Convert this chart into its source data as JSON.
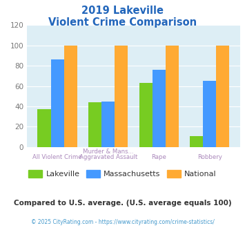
{
  "title_line1": "2019 Lakeville",
  "title_line2": "Violent Crime Comparison",
  "x_labels_top": [
    "",
    "Murder & Mans...",
    "",
    ""
  ],
  "x_labels_bottom": [
    "All Violent Crime",
    "Aggravated Assault",
    "Rape",
    "Robbery"
  ],
  "lakeville": [
    37,
    44,
    63,
    11
  ],
  "massachusetts": [
    86,
    45,
    76,
    65
  ],
  "national": [
    100,
    100,
    100,
    100
  ],
  "colors": {
    "lakeville": "#77cc22",
    "massachusetts": "#4499ff",
    "national": "#ffaa33"
  },
  "ylim": [
    0,
    120
  ],
  "yticks": [
    0,
    20,
    40,
    60,
    80,
    100,
    120
  ],
  "title_color": "#2266bb",
  "plot_bg": "#ddeef5",
  "footer_note": "Compared to U.S. average. (U.S. average equals 100)",
  "copyright": "© 2025 CityRating.com - https://www.cityrating.com/crime-statistics/",
  "footer_color": "#333333",
  "copyright_color": "#4499cc",
  "legend_labels": [
    "Lakeville",
    "Massachusetts",
    "National"
  ],
  "xlabel_color": "#aa88bb"
}
